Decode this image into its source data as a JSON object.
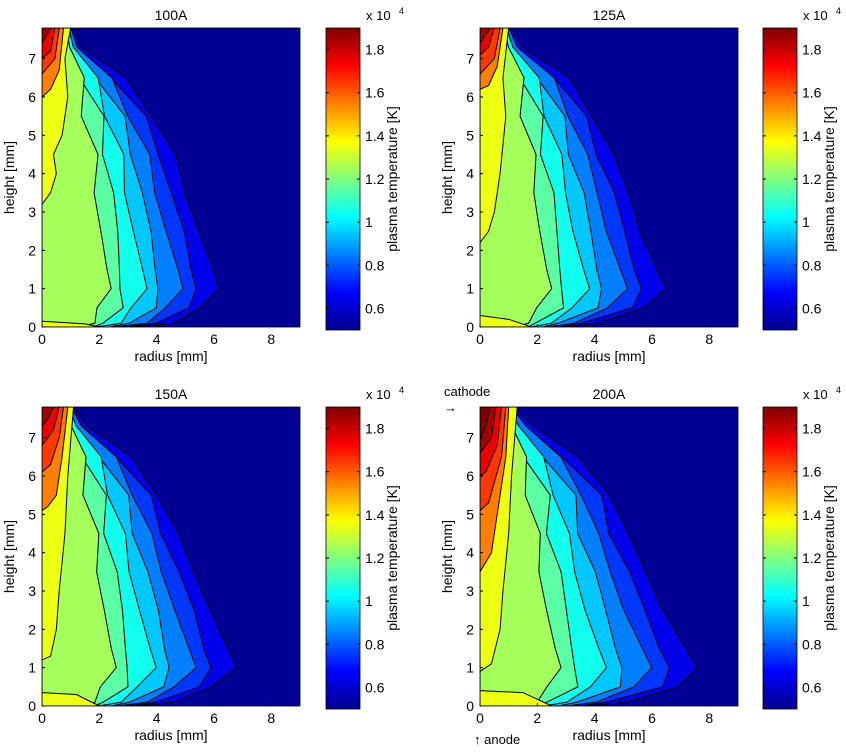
{
  "chart_data": [
    {
      "type": "contour",
      "title": "100A",
      "xlabel": "radius [mm]",
      "ylabel": "height [mm]",
      "xlim": [
        0,
        9
      ],
      "ylim": [
        0,
        7.8
      ],
      "xticks": [
        0,
        2,
        4,
        6,
        8
      ],
      "yticks": [
        0,
        1,
        2,
        3,
        4,
        5,
        6,
        7
      ],
      "colorbar": {
        "label": "plasma temperature [K]",
        "multiplier": "x 10",
        "exponent": "4",
        "range": [
          0.5,
          1.9
        ],
        "ticks": [
          0.6,
          0.8,
          1,
          1.2,
          1.4,
          1.6,
          1.8
        ]
      },
      "levels": [
        0.6,
        0.7,
        0.8,
        0.9,
        1.0,
        1.1,
        1.2
      ],
      "outer_boundary": {
        "heights": [
          7.8,
          7.3,
          6.5,
          5.5,
          4.5,
          3.5,
          2.5,
          1.5,
          1.0,
          0.5,
          0.1,
          0
        ],
        "radii": [
          1.0,
          1.3,
          2.8,
          3.9,
          4.6,
          5.0,
          5.5,
          5.9,
          6.1,
          5.6,
          4.5,
          3.2
        ]
      },
      "core": [
        {
          "level": 1.3,
          "points": [
            [
              0,
              7.8
            ],
            [
              1.0,
              7.8
            ],
            [
              0.8,
              7
            ],
            [
              0.9,
              6
            ],
            [
              0.7,
              5
            ],
            [
              0.4,
              4.5
            ],
            [
              0.5,
              4
            ],
            [
              0.3,
              3.5
            ],
            [
              0,
              3.2
            ]
          ]
        },
        {
          "level": 1.3,
          "points": [
            [
              0,
              0.15
            ],
            [
              1.5,
              0.08
            ],
            [
              2,
              0
            ],
            [
              0,
              0
            ]
          ]
        },
        {
          "level": 1.5,
          "points": [
            [
              0,
              7.8
            ],
            [
              0.75,
              7.8
            ],
            [
              0.6,
              6.7
            ],
            [
              0.3,
              6.2
            ],
            [
              0,
              6.0
            ]
          ]
        },
        {
          "level": 1.6,
          "points": [
            [
              0,
              7.8
            ],
            [
              0.6,
              7.8
            ],
            [
              0.45,
              7
            ],
            [
              0,
              6.6
            ]
          ]
        },
        {
          "level": 1.7,
          "points": [
            [
              0,
              7.8
            ],
            [
              0.45,
              7.8
            ],
            [
              0.3,
              7.2
            ],
            [
              0,
              7.0
            ]
          ]
        },
        {
          "level": 1.8,
          "points": [
            [
              0,
              7.8
            ],
            [
              0.3,
              7.8
            ],
            [
              0,
              7.4
            ]
          ]
        }
      ]
    },
    {
      "type": "contour",
      "title": "125A",
      "xlabel": "radius [mm]",
      "ylabel": "height [mm]",
      "xlim": [
        0,
        9
      ],
      "ylim": [
        0,
        7.8
      ],
      "xticks": [
        0,
        2,
        4,
        6,
        8
      ],
      "yticks": [
        0,
        1,
        2,
        3,
        4,
        5,
        6,
        7
      ],
      "colorbar": {
        "label": "plasma temperature [K]",
        "multiplier": "x 10",
        "exponent": "4",
        "range": [
          0.5,
          1.9
        ],
        "ticks": [
          0.6,
          0.8,
          1,
          1.2,
          1.4,
          1.6,
          1.8
        ]
      },
      "levels": [
        0.6,
        0.7,
        0.8,
        0.9,
        1.0,
        1.1,
        1.2
      ],
      "outer_boundary": {
        "heights": [
          7.8,
          7.3,
          6.5,
          5.5,
          4.5,
          3.5,
          2.5,
          1.5,
          1.0,
          0.5,
          0.1,
          0
        ],
        "radii": [
          1.0,
          1.4,
          3.0,
          4.0,
          4.6,
          5.2,
          5.6,
          6.1,
          6.4,
          5.8,
          4.0,
          3.0
        ]
      },
      "core": [
        {
          "level": 1.3,
          "points": [
            [
              0,
              7.8
            ],
            [
              1.0,
              7.8
            ],
            [
              0.8,
              6.5
            ],
            [
              0.9,
              5.5
            ],
            [
              0.7,
              4
            ],
            [
              0.5,
              3
            ],
            [
              0.3,
              2.5
            ],
            [
              0,
              2.2
            ]
          ]
        },
        {
          "level": 1.3,
          "points": [
            [
              0,
              0.3
            ],
            [
              1.0,
              0.2
            ],
            [
              1.8,
              0
            ],
            [
              0,
              0
            ]
          ]
        },
        {
          "level": 1.5,
          "points": [
            [
              0,
              7.8
            ],
            [
              0.8,
              7.8
            ],
            [
              0.6,
              6.8
            ],
            [
              0.3,
              6.3
            ],
            [
              0,
              6.2
            ]
          ]
        },
        {
          "level": 1.6,
          "points": [
            [
              0,
              7.8
            ],
            [
              0.7,
              7.8
            ],
            [
              0.5,
              7
            ],
            [
              0,
              6.6
            ]
          ]
        },
        {
          "level": 1.7,
          "points": [
            [
              0,
              7.8
            ],
            [
              0.5,
              7.8
            ],
            [
              0.3,
              7.3
            ],
            [
              0,
              7.1
            ]
          ]
        },
        {
          "level": 1.8,
          "points": [
            [
              0,
              7.8
            ],
            [
              0.35,
              7.8
            ],
            [
              0,
              7.4
            ]
          ]
        }
      ]
    },
    {
      "type": "contour",
      "title": "150A",
      "xlabel": "radius [mm]",
      "ylabel": "height [mm]",
      "xlim": [
        0,
        9
      ],
      "ylim": [
        0,
        7.8
      ],
      "xticks": [
        0,
        2,
        4,
        6,
        8
      ],
      "yticks": [
        0,
        1,
        2,
        3,
        4,
        5,
        6,
        7
      ],
      "colorbar": {
        "label": "plasma temperature [K]",
        "multiplier": "x 10",
        "exponent": "4",
        "range": [
          0.5,
          1.9
        ],
        "ticks": [
          0.6,
          0.8,
          1,
          1.2,
          1.4,
          1.6,
          1.8
        ]
      },
      "levels": [
        0.6,
        0.7,
        0.8,
        0.9,
        1.0,
        1.1,
        1.2
      ],
      "outer_boundary": {
        "heights": [
          7.8,
          7.3,
          6.5,
          5.5,
          4.5,
          3.5,
          2.5,
          1.5,
          1.0,
          0.5,
          0.1,
          0
        ],
        "radii": [
          1.0,
          1.5,
          3.0,
          4.1,
          4.7,
          5.3,
          5.9,
          6.4,
          6.7,
          6.0,
          4.5,
          3.3
        ]
      },
      "core": [
        {
          "level": 1.3,
          "points": [
            [
              0,
              7.8
            ],
            [
              1.1,
              7.8
            ],
            [
              0.9,
              6
            ],
            [
              0.8,
              4.5
            ],
            [
              0.6,
              3
            ],
            [
              0.5,
              2
            ],
            [
              0.3,
              1.3
            ],
            [
              0,
              1.2
            ]
          ]
        },
        {
          "level": 1.3,
          "points": [
            [
              0,
              0.35
            ],
            [
              1.2,
              0.3
            ],
            [
              2,
              0
            ],
            [
              0,
              0
            ]
          ]
        },
        {
          "level": 1.5,
          "points": [
            [
              0,
              7.8
            ],
            [
              0.9,
              7.8
            ],
            [
              0.7,
              6.5
            ],
            [
              0.5,
              5.5
            ],
            [
              0.2,
              5.2
            ],
            [
              0,
              5.1
            ]
          ]
        },
        {
          "level": 1.6,
          "points": [
            [
              0,
              7.8
            ],
            [
              0.75,
              7.8
            ],
            [
              0.6,
              7
            ],
            [
              0.3,
              6.3
            ],
            [
              0,
              6.1
            ]
          ]
        },
        {
          "level": 1.7,
          "points": [
            [
              0,
              7.8
            ],
            [
              0.6,
              7.8
            ],
            [
              0.4,
              7.2
            ],
            [
              0,
              6.8
            ]
          ]
        },
        {
          "level": 1.8,
          "points": [
            [
              0,
              7.8
            ],
            [
              0.4,
              7.8
            ],
            [
              0.2,
              7.5
            ],
            [
              0,
              7.3
            ]
          ]
        }
      ]
    },
    {
      "type": "contour",
      "title": "200A",
      "xlabel": "radius [mm]",
      "ylabel": "height [mm]",
      "xlim": [
        0,
        9
      ],
      "ylim": [
        0,
        7.8
      ],
      "xticks": [
        0,
        2,
        4,
        6,
        8
      ],
      "yticks": [
        0,
        1,
        2,
        3,
        4,
        5,
        6,
        7
      ],
      "colorbar": {
        "label": "plasma temperature [K]",
        "multiplier": "x 10",
        "exponent": "4",
        "range": [
          0.5,
          1.9
        ],
        "ticks": [
          0.6,
          0.8,
          1,
          1.2,
          1.4,
          1.6,
          1.8
        ]
      },
      "levels": [
        0.6,
        0.7,
        0.8,
        0.9,
        1.0,
        1.1,
        1.2
      ],
      "outer_boundary": {
        "heights": [
          7.8,
          7.3,
          6.5,
          5.5,
          4.5,
          3.5,
          2.5,
          1.5,
          1.0,
          0.5,
          0.1,
          0
        ],
        "radii": [
          1.1,
          1.8,
          3.3,
          4.6,
          5.1,
          5.8,
          6.4,
          7.1,
          7.5,
          7.0,
          5.0,
          3.8
        ]
      },
      "core": [
        {
          "level": 1.3,
          "points": [
            [
              0,
              7.8
            ],
            [
              1.3,
              7.8
            ],
            [
              1.1,
              6
            ],
            [
              1.0,
              4.5
            ],
            [
              0.8,
              3
            ],
            [
              0.7,
              2
            ],
            [
              0.4,
              1.1
            ],
            [
              0,
              0.9
            ]
          ]
        },
        {
          "level": 1.3,
          "points": [
            [
              0,
              0.4
            ],
            [
              1.5,
              0.35
            ],
            [
              2.5,
              0
            ],
            [
              0,
              0
            ]
          ]
        },
        {
          "level": 1.5,
          "points": [
            [
              0,
              7.8
            ],
            [
              1.0,
              7.8
            ],
            [
              0.9,
              6.5
            ],
            [
              0.6,
              5
            ],
            [
              0.4,
              4
            ],
            [
              0,
              3.5
            ]
          ]
        },
        {
          "level": 1.6,
          "points": [
            [
              0,
              7.8
            ],
            [
              0.9,
              7.8
            ],
            [
              0.75,
              6.5
            ],
            [
              0.3,
              5.3
            ],
            [
              0,
              5.1
            ]
          ]
        },
        {
          "level": 1.7,
          "points": [
            [
              0,
              7.8
            ],
            [
              0.75,
              7.8
            ],
            [
              0.6,
              6.8
            ],
            [
              0.2,
              6.1
            ],
            [
              0,
              6.0
            ]
          ]
        },
        {
          "level": 1.8,
          "points": [
            [
              0,
              7.8
            ],
            [
              0.55,
              7.8
            ],
            [
              0.4,
              7
            ],
            [
              0,
              6.6
            ]
          ]
        },
        {
          "level": 1.85,
          "points": [
            [
              0,
              7.8
            ],
            [
              0.35,
              7.8
            ],
            [
              0.2,
              7.3
            ],
            [
              0,
              7.0
            ]
          ]
        }
      ],
      "annotations": {
        "top": "cathode",
        "top_arrow": "→",
        "bottom": "↑ anode"
      }
    }
  ]
}
